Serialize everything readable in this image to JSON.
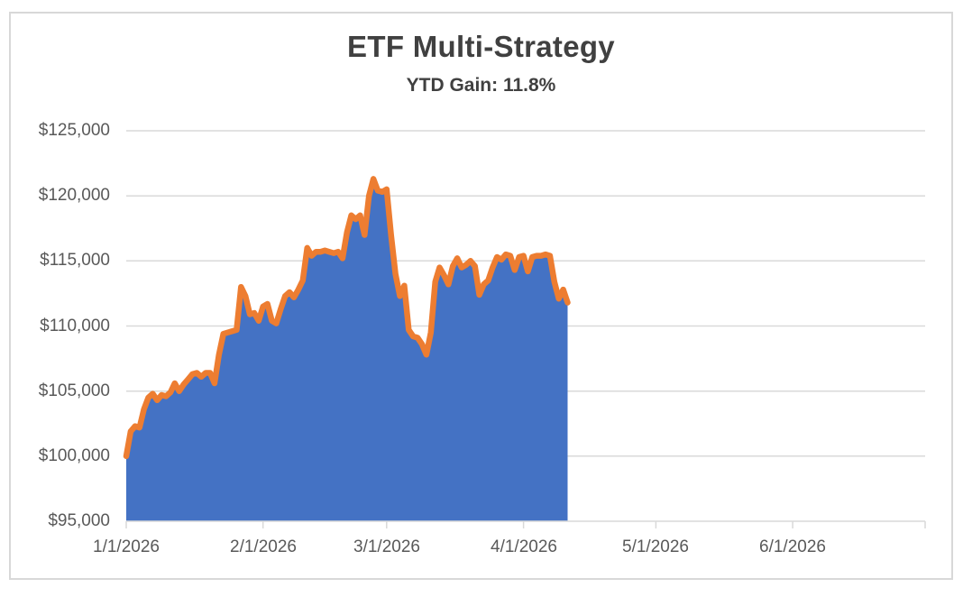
{
  "chart_data": {
    "type": "area",
    "title": "ETF Multi-Strategy",
    "subtitle": "YTD Gain: 11.8%",
    "x_start_label": "1/1/2026",
    "x_total_days": 181,
    "ylim": [
      95000,
      125000
    ],
    "y_ticks": [
      {
        "value": 95000,
        "label": "$95,000"
      },
      {
        "value": 100000,
        "label": "$100,000"
      },
      {
        "value": 105000,
        "label": "$105,000"
      },
      {
        "value": 110000,
        "label": "$110,000"
      },
      {
        "value": 115000,
        "label": "$115,000"
      },
      {
        "value": 120000,
        "label": "$120,000"
      },
      {
        "value": 125000,
        "label": "$125,000"
      }
    ],
    "x_ticks": [
      {
        "day": 0,
        "label": "1/1/2026"
      },
      {
        "day": 31,
        "label": "2/1/2026"
      },
      {
        "day": 59,
        "label": "3/1/2026"
      },
      {
        "day": 90,
        "label": "4/1/2026"
      },
      {
        "day": 120,
        "label": "5/1/2026"
      },
      {
        "day": 151,
        "label": "6/1/2026"
      },
      {
        "day": 181,
        "label": ""
      }
    ],
    "values": [
      100000,
      101900,
      102300,
      102200,
      103600,
      104500,
      104800,
      104300,
      104700,
      104600,
      104900,
      105600,
      105000,
      105500,
      105900,
      106300,
      106400,
      106100,
      106400,
      106400,
      105600,
      107800,
      109400,
      109500,
      109600,
      109700,
      113000,
      112300,
      110900,
      111000,
      110400,
      111500,
      111700,
      110400,
      110200,
      111300,
      112300,
      112600,
      112200,
      112800,
      113500,
      116000,
      115400,
      115700,
      115700,
      115800,
      115700,
      115600,
      115700,
      115200,
      117200,
      118500,
      118200,
      118500,
      117000,
      120000,
      121300,
      120400,
      120300,
      120500,
      117000,
      114000,
      112300,
      113100,
      109700,
      109200,
      109100,
      108600,
      107800,
      109500,
      113400,
      114500,
      113900,
      113200,
      114600,
      115200,
      114500,
      114700,
      115000,
      114600,
      112400,
      113200,
      113500,
      114500,
      115300,
      115100,
      115500,
      115400,
      114300,
      115300,
      115400,
      114200,
      115300,
      115400,
      115400,
      115500,
      115400,
      113400,
      112100,
      112800,
      111800
    ],
    "colors": {
      "area_fill": "#4472C4",
      "line": "#ED7D31",
      "gridline": "#D9D9D9",
      "axis_text": "#595959",
      "title_text": "#404040"
    }
  }
}
